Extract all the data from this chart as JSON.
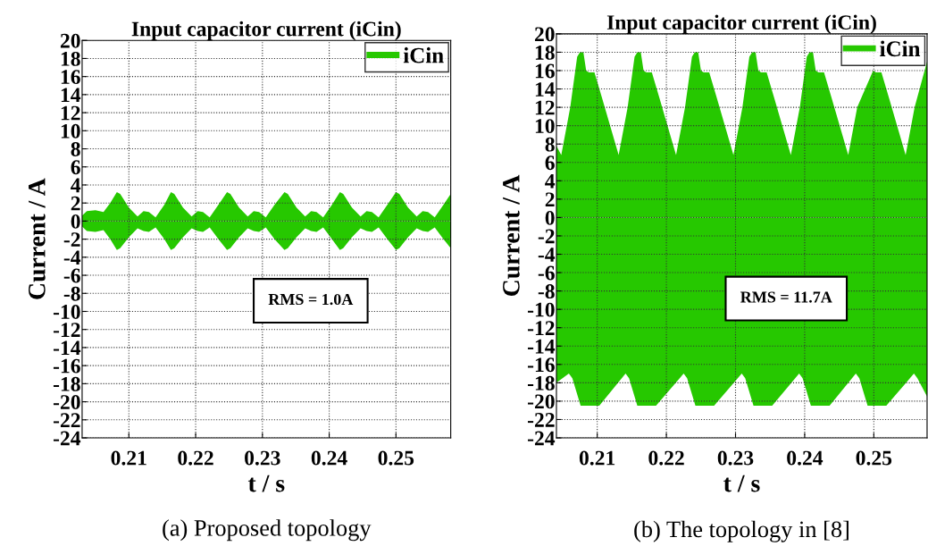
{
  "chart_data": [
    {
      "type": "area",
      "title": "Input capacitor current (iCin)",
      "xlabel": "t / s",
      "ylabel": "Current / A",
      "xlim": [
        0.203,
        0.2582
      ],
      "xticks": [
        0.21,
        0.22,
        0.23,
        0.24,
        0.25
      ],
      "ylim": [
        -24,
        20
      ],
      "yticks": [
        -24,
        -22,
        -20,
        -18,
        -16,
        -14,
        -12,
        -10,
        -8,
        -6,
        -4,
        -2,
        0,
        2,
        4,
        6,
        8,
        10,
        12,
        14,
        16,
        18,
        20
      ],
      "grid": true,
      "legend": "top right",
      "annotations": [
        "RMS = 1.0A",
        "(a) Proposed topology"
      ],
      "series": [
        {
          "name": "iCin",
          "color": "#26c800",
          "x": [
            0.203,
            0.2037,
            0.205,
            0.2062,
            0.2072,
            0.2082,
            0.2087,
            0.21,
            0.2113,
            0.2122,
            0.213,
            0.214,
            0.2153,
            0.2163,
            0.2168,
            0.2181,
            0.2194,
            0.2203,
            0.2211,
            0.2221,
            0.2234,
            0.2247,
            0.2252,
            0.2265,
            0.2278,
            0.2287,
            0.2295,
            0.2305,
            0.2318,
            0.2333,
            0.2338,
            0.2351,
            0.2364,
            0.2373,
            0.2381,
            0.2391,
            0.2404,
            0.2416,
            0.2421,
            0.2434,
            0.2447,
            0.2456,
            0.2464,
            0.2474,
            0.2487,
            0.25,
            0.2505,
            0.2518,
            0.2531,
            0.254,
            0.2548,
            0.2558,
            0.2571,
            0.2582
          ],
          "values": [
            0.6,
            1.1,
            1.2,
            1.0,
            2.0,
            3.2,
            3.0,
            1.5,
            0.5,
            1.1,
            1.0,
            0.4,
            1.8,
            3.2,
            3.0,
            1.5,
            0.5,
            1.1,
            1.0,
            0.4,
            1.8,
            3.2,
            3.0,
            1.5,
            0.5,
            1.1,
            1.0,
            0.4,
            1.8,
            3.2,
            3.0,
            1.5,
            0.5,
            1.1,
            1.0,
            0.4,
            1.8,
            3.2,
            3.0,
            1.5,
            0.5,
            1.1,
            1.0,
            0.4,
            1.8,
            3.2,
            3.0,
            1.5,
            0.5,
            1.1,
            1.0,
            0.4,
            1.8,
            3.0
          ]
        },
        {
          "color": "#26c800",
          "x": [
            0.203,
            0.2037,
            0.205,
            0.2062,
            0.2072,
            0.2082,
            0.2087,
            0.21,
            0.2113,
            0.2122,
            0.213,
            0.214,
            0.2153,
            0.2163,
            0.2168,
            0.2181,
            0.2194,
            0.2203,
            0.2211,
            0.2221,
            0.2234,
            0.2247,
            0.2252,
            0.2265,
            0.2278,
            0.2287,
            0.2295,
            0.2305,
            0.2318,
            0.2333,
            0.2338,
            0.2351,
            0.2364,
            0.2373,
            0.2381,
            0.2391,
            0.2404,
            0.2416,
            0.2421,
            0.2434,
            0.2447,
            0.2456,
            0.2464,
            0.2474,
            0.2487,
            0.25,
            0.2505,
            0.2518,
            0.2531,
            0.254,
            0.2548,
            0.2558,
            0.2571,
            0.2582
          ],
          "values": [
            -0.6,
            -1.1,
            -1.2,
            -1.0,
            -2.0,
            -3.2,
            -3.0,
            -1.8,
            -0.8,
            -1.1,
            -1.2,
            -0.7,
            -2.0,
            -3.2,
            -3.0,
            -1.8,
            -0.8,
            -1.1,
            -1.2,
            -0.7,
            -2.0,
            -3.2,
            -3.0,
            -1.8,
            -0.8,
            -1.1,
            -1.2,
            -0.7,
            -2.0,
            -3.2,
            -3.0,
            -1.8,
            -0.8,
            -1.1,
            -1.2,
            -0.7,
            -2.0,
            -3.2,
            -3.0,
            -1.8,
            -0.8,
            -1.1,
            -1.2,
            -0.7,
            -2.0,
            -3.2,
            -3.0,
            -1.8,
            -0.8,
            -1.1,
            -1.2,
            -0.7,
            -2.0,
            -3.0
          ]
        }
      ]
    },
    {
      "type": "area",
      "title": "Input capacitor current (iCin)",
      "xlabel": "t / s",
      "ylabel": "Current / A",
      "xlim": [
        0.2041,
        0.2577
      ],
      "xticks": [
        0.21,
        0.22,
        0.23,
        0.24,
        0.25
      ],
      "ylim": [
        -24,
        20
      ],
      "yticks": [
        -24,
        -22,
        -20,
        -18,
        -16,
        -14,
        -12,
        -10,
        -8,
        -6,
        -4,
        -2,
        0,
        2,
        4,
        6,
        8,
        10,
        12,
        14,
        16,
        18,
        20
      ],
      "grid": true,
      "legend": "top right",
      "annotations": [
        "RMS = 11.7A",
        "(b) The topology in [8]"
      ],
      "series": [
        {
          "name": "iCin",
          "color": "#26c800",
          "x": [
            0.2041,
            0.2048,
            0.2061,
            0.2071,
            0.2075,
            0.208,
            0.2084,
            0.2088,
            0.2096,
            0.2107,
            0.2131,
            0.2144,
            0.2154,
            0.2158,
            0.2163,
            0.2167,
            0.2171,
            0.2179,
            0.219,
            0.2214,
            0.2227,
            0.2237,
            0.2241,
            0.2246,
            0.225,
            0.2254,
            0.2262,
            0.2273,
            0.2297,
            0.231,
            0.232,
            0.2324,
            0.2329,
            0.2333,
            0.2337,
            0.2345,
            0.2356,
            0.238,
            0.2393,
            0.2403,
            0.2407,
            0.2412,
            0.2416,
            0.242,
            0.2428,
            0.2439,
            0.2463,
            0.2476,
            0.2486,
            0.249,
            0.2495,
            0.2499,
            0.2503,
            0.2511,
            0.2522,
            0.2546,
            0.2559,
            0.2577
          ],
          "values": [
            7.8,
            6.8,
            12,
            17.5,
            18,
            18,
            16,
            15.8,
            15.8,
            13,
            6.8,
            12,
            17.5,
            18,
            18,
            16,
            15.8,
            15.8,
            13,
            6.8,
            12,
            17.5,
            18,
            18,
            16,
            15.8,
            15.8,
            13,
            6.8,
            12,
            17.5,
            18,
            18,
            16,
            15.8,
            15.8,
            13,
            6.8,
            12,
            17.5,
            18,
            18,
            16,
            15.8,
            15.8,
            13,
            6.8,
            12,
            null,
            null,
            null,
            16,
            15.8,
            15.8,
            13,
            6.8,
            12,
            17
          ]
        },
        {
          "color": "#26c800",
          "x": [
            0.2041,
            0.2059,
            0.2064,
            0.2076,
            0.2103,
            0.2141,
            0.2146,
            0.2158,
            0.2185,
            0.2225,
            0.223,
            0.2242,
            0.2269,
            0.2309,
            0.2314,
            0.2326,
            0.2353,
            0.2392,
            0.2397,
            0.2409,
            0.2436,
            0.2474,
            0.2479,
            0.2491,
            0.2518,
            0.2558,
            0.2563,
            0.2577
          ],
          "values": [
            -18,
            -17,
            -17.5,
            -20.5,
            -20.5,
            -17,
            -17.5,
            -20.5,
            -20.5,
            -17,
            -17.5,
            -20.5,
            -20.5,
            -17,
            -17.5,
            -20.5,
            -20.5,
            -17,
            -17.5,
            -20.5,
            -20.5,
            -17,
            -17.5,
            -20.5,
            -20.5,
            -17,
            -17.5,
            -19.5
          ]
        }
      ]
    }
  ]
}
